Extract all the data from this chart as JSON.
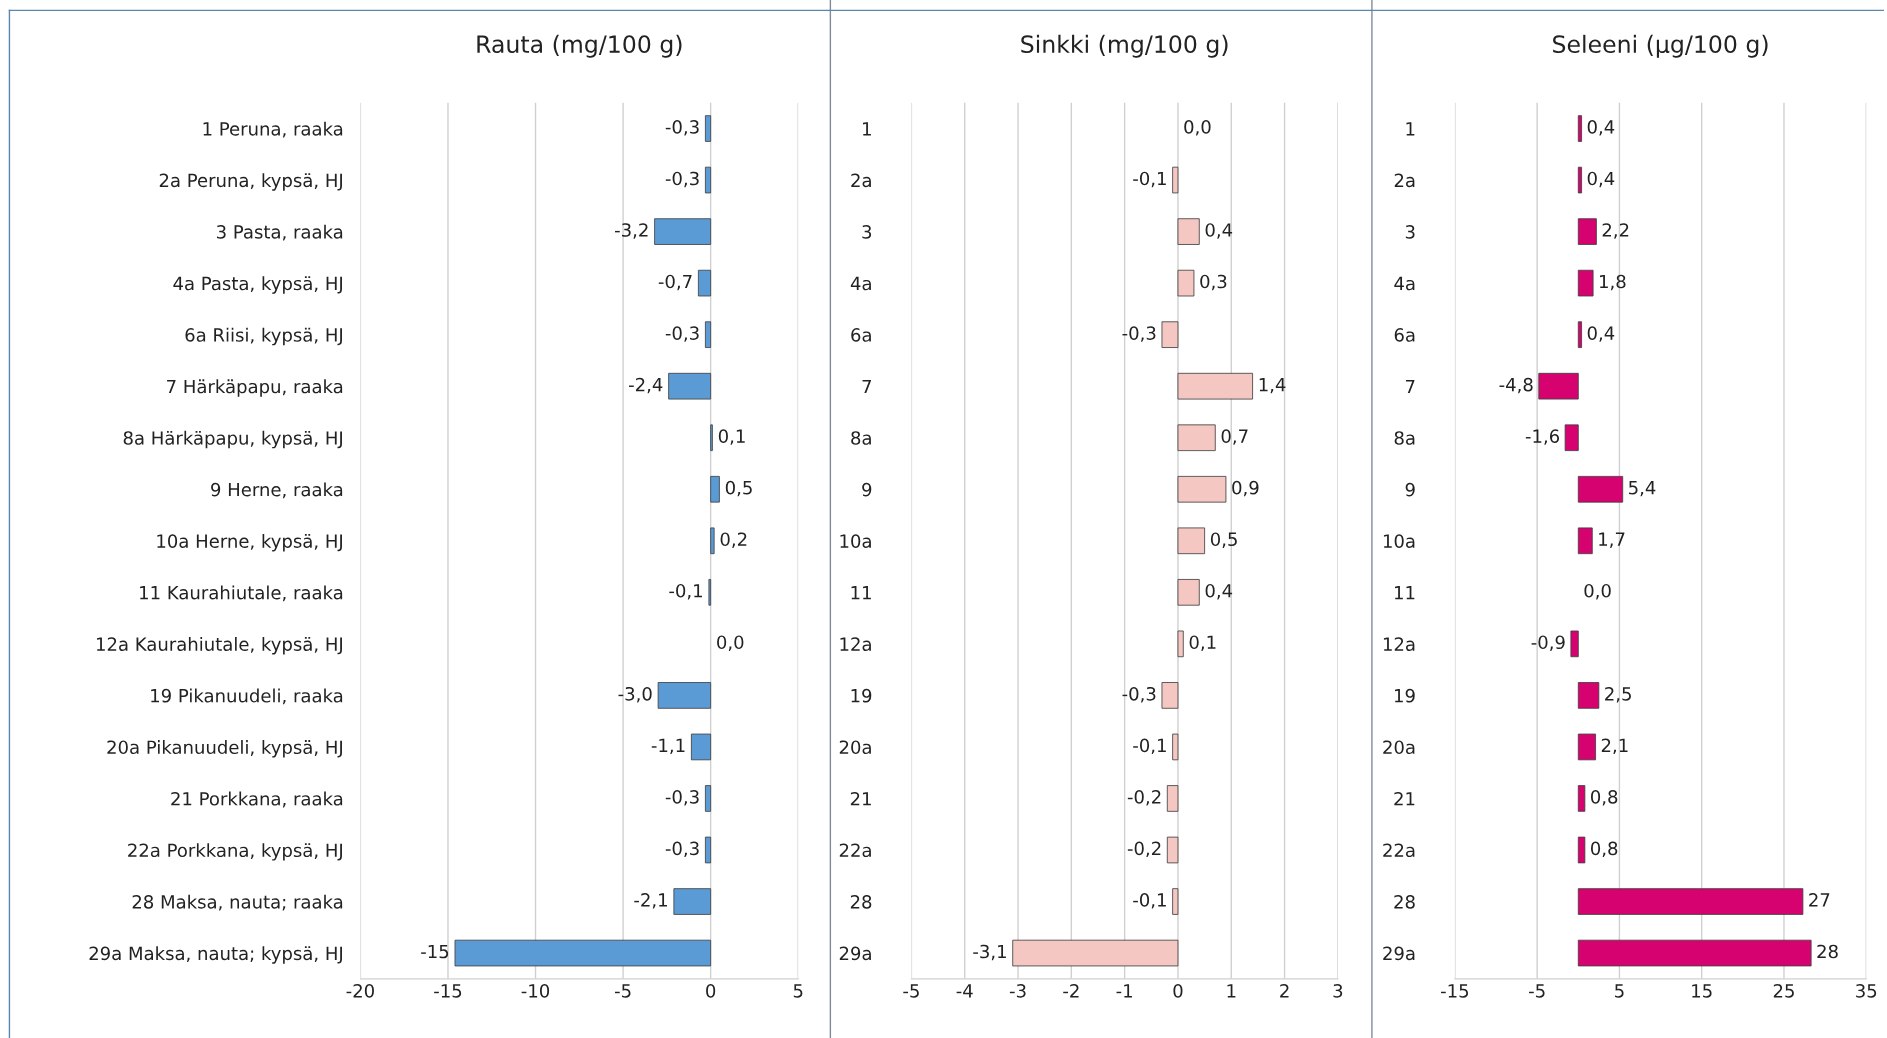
{
  "chart_data": [
    {
      "type": "bar",
      "orientation": "horizontal",
      "title": "Rauta (mg/100 g)",
      "categories": [
        "1 Peruna, raaka",
        "2a Peruna, kypsä, HJ",
        "3 Pasta, raaka",
        "4a Pasta, kypsä, HJ",
        "6a Riisi, kypsä, HJ",
        "7 Härkäpapu, raaka",
        "8a Härkäpapu, kypsä, HJ",
        "9 Herne, raaka",
        "10a Herne, kypsä, HJ",
        "11 Kaurahiutale, raaka",
        "12a Kaurahiutale, kypsä, HJ",
        "19 Pikanuudeli, raaka",
        "20a Pikanuudeli, kypsä, HJ",
        "21 Porkkana, raaka",
        "22a Porkkana, kypsä, HJ",
        "28 Maksa, nauta; raaka",
        "29a Maksa, nauta; kypsä, HJ"
      ],
      "values": [
        -0.3,
        -0.3,
        -3.2,
        -0.7,
        -0.3,
        -2.4,
        0.1,
        0.5,
        0.2,
        -0.1,
        0.0,
        -3.0,
        -1.1,
        -0.3,
        -0.3,
        -2.1,
        -14.6
      ],
      "value_labels": [
        "-0,3",
        "-0,3",
        "-3,2",
        "-0,7",
        "-0,3",
        "-2,4",
        "0,1",
        "0,5",
        "0,2",
        "-0,1",
        "0,0",
        "-3,0",
        "-1,1",
        "-0,3",
        "-0,3",
        "-2,1",
        "-15"
      ],
      "color": "#5b9bd5",
      "xlim": [
        -20,
        5
      ],
      "xticks": [
        -20,
        -15,
        -10,
        -5,
        0,
        5
      ],
      "grid": "x"
    },
    {
      "type": "bar",
      "orientation": "horizontal",
      "title": "Sinkki (mg/100 g)",
      "categories": [
        "1",
        "2a",
        "3",
        "4a",
        "6a",
        "7",
        "8a",
        "9",
        "10a",
        "11",
        "12a",
        "19",
        "20a",
        "21",
        "22a",
        "28",
        "29a"
      ],
      "values": [
        0.0,
        -0.1,
        0.4,
        0.3,
        -0.3,
        1.4,
        0.7,
        0.9,
        0.5,
        0.4,
        0.1,
        -0.3,
        -0.1,
        -0.2,
        -0.2,
        -0.1,
        -3.1
      ],
      "value_labels": [
        "0,0",
        "-0,1",
        "0,4",
        "0,3",
        "-0,3",
        "1,4",
        "0,7",
        "0,9",
        "0,5",
        "0,4",
        "0,1",
        "-0,3",
        "-0,1",
        "-0,2",
        "-0,2",
        "-0,1",
        "-3,1"
      ],
      "color": "#f4c7c3",
      "xlim": [
        -5,
        3
      ],
      "xticks": [
        -5,
        -4,
        -3,
        -2,
        -1,
        0,
        1,
        2,
        3
      ],
      "grid": "x"
    },
    {
      "type": "bar",
      "orientation": "horizontal",
      "title": "Seleeni (µg/100 g)",
      "categories": [
        "1",
        "2a",
        "3",
        "4a",
        "6a",
        "7",
        "8a",
        "9",
        "10a",
        "11",
        "12a",
        "19",
        "20a",
        "21",
        "22a",
        "28",
        "29a"
      ],
      "values": [
        0.4,
        0.4,
        2.2,
        1.8,
        0.4,
        -4.8,
        -1.6,
        5.4,
        1.7,
        0.0,
        -0.9,
        2.5,
        2.1,
        0.8,
        0.8,
        27.3,
        28.3
      ],
      "value_labels": [
        "0,4",
        "0,4",
        "2,2",
        "1,8",
        "0,4",
        "-4,8",
        "-1,6",
        "5,4",
        "1,7",
        "0,0",
        "-0,9",
        "2,5",
        "2,1",
        "0,8",
        "0,8",
        "27",
        "28"
      ],
      "color": "#d60270",
      "xlim": [
        -15,
        35
      ],
      "xticks": [
        -15,
        -5,
        5,
        15,
        25,
        35
      ],
      "grid": "x"
    }
  ]
}
